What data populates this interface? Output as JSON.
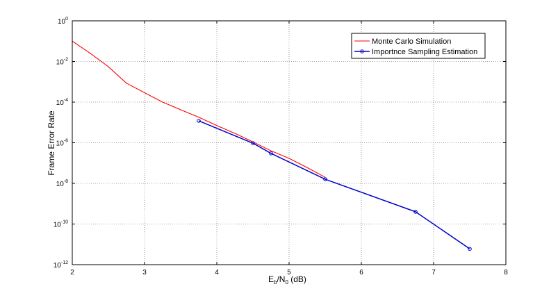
{
  "chart_data": {
    "type": "line",
    "title": "",
    "xlabel": {
      "main": "E",
      "sub1": "b",
      "mid": "/N",
      "sub2": "0",
      "tail": " (dB)"
    },
    "ylabel": "Frame Error Rate",
    "xlim": [
      2,
      8
    ],
    "ylim": [
      1e-12,
      1
    ],
    "yscale": "log",
    "grid": true,
    "legend_position": "top-right",
    "x_ticks": [
      "2",
      "3",
      "4",
      "5",
      "6",
      "7",
      "8"
    ],
    "y_ticks": [
      {
        "base": "10",
        "exp": "0"
      },
      {
        "base": "10",
        "exp": "-2"
      },
      {
        "base": "10",
        "exp": "-4"
      },
      {
        "base": "10",
        "exp": "-6"
      },
      {
        "base": "10",
        "exp": "-8"
      },
      {
        "base": "10",
        "exp": "-10"
      },
      {
        "base": "10",
        "exp": "-12"
      }
    ],
    "series": [
      {
        "name": "Monte Carlo Simulation",
        "color": "#ff0000",
        "marker": "none",
        "x": [
          2.0,
          2.25,
          2.5,
          2.75,
          3.0,
          3.25,
          3.5,
          3.75,
          4.0,
          4.25,
          4.5,
          4.75,
          5.0,
          5.25,
          5.5
        ],
        "y": [
          0.1,
          0.025,
          0.0055,
          0.00085,
          0.00029,
          0.0001,
          4.2e-05,
          1.8e-05,
          7e-06,
          2.9e-06,
          1.1e-06,
          4e-07,
          1.7e-07,
          6e-08,
          2e-08
        ]
      },
      {
        "name": "Importnce Sampling Estimation",
        "color": "#0000cc",
        "marker": "circle",
        "x": [
          3.75,
          4.5,
          4.75,
          5.5,
          6.75,
          7.5
        ],
        "y": [
          1.2e-05,
          9.5e-07,
          3e-07,
          1.6e-08,
          4e-10,
          6e-12
        ]
      }
    ]
  }
}
